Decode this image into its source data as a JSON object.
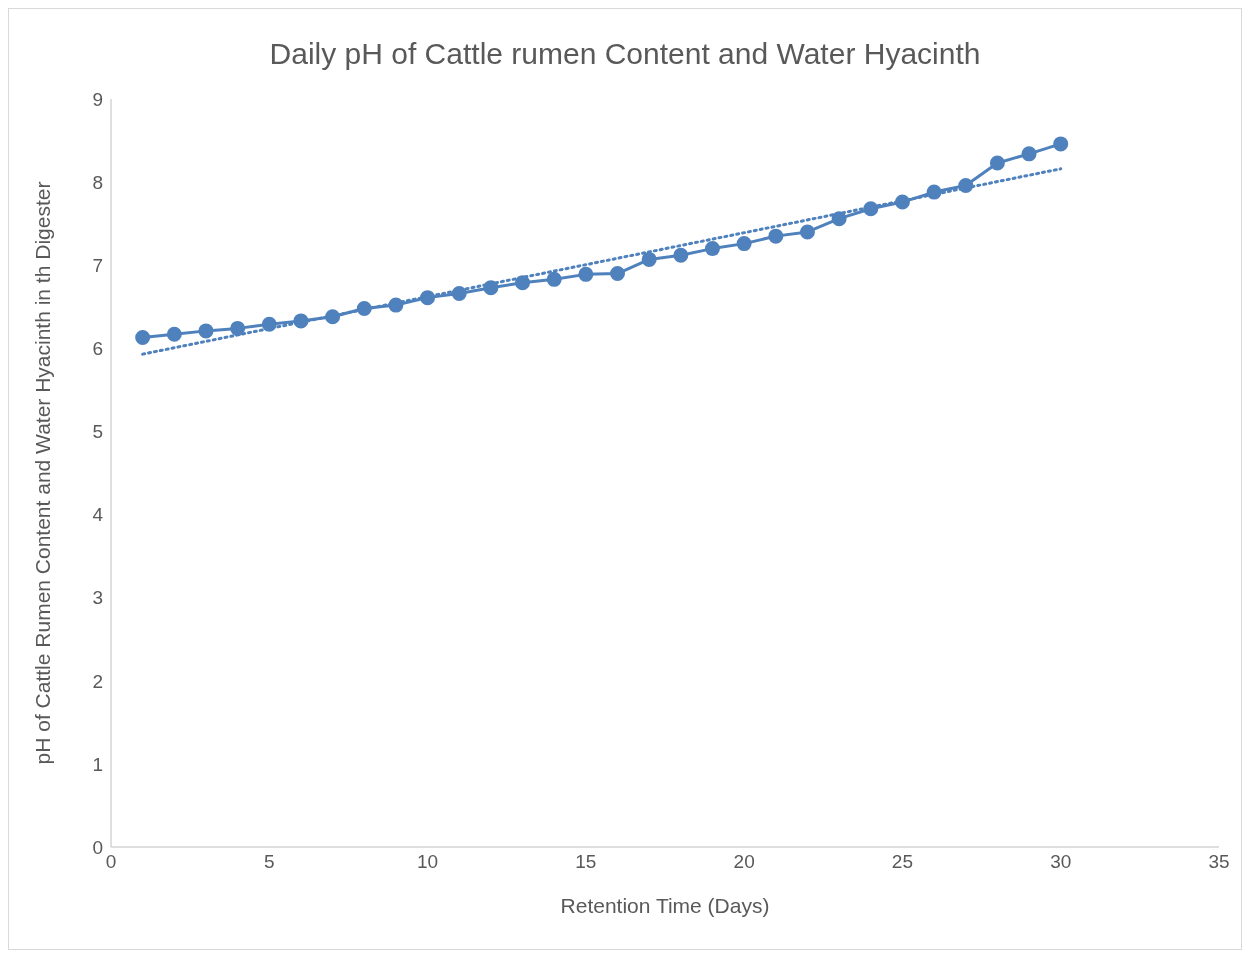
{
  "chart_data": {
    "type": "line",
    "title": "Daily pH of Cattle rumen Content and Water Hyacinth",
    "xlabel": "Retention Time (Days)",
    "ylabel": "pH of Cattle Rumen Content and Water Hyacinth in th Digester",
    "x": [
      1,
      2,
      3,
      4,
      5,
      6,
      7,
      8,
      9,
      10,
      11,
      12,
      13,
      14,
      15,
      16,
      17,
      18,
      19,
      20,
      21,
      22,
      23,
      24,
      25,
      26,
      27,
      28,
      29,
      30
    ],
    "series": [
      {
        "color": "#4f81bd",
        "marker": "circle",
        "line_style": "solid",
        "values": [
          6.13,
          6.17,
          6.21,
          6.24,
          6.29,
          6.33,
          6.38,
          6.48,
          6.52,
          6.61,
          6.66,
          6.73,
          6.79,
          6.83,
          6.89,
          6.9,
          7.07,
          7.12,
          7.2,
          7.26,
          7.35,
          7.4,
          7.56,
          7.68,
          7.76,
          7.88,
          7.96,
          8.23,
          8.34,
          8.46
        ]
      },
      {
        "type": "line",
        "color": "#4f81bd",
        "marker": "none",
        "line_style": "dotted",
        "x": [
          1,
          30
        ],
        "values": [
          5.93,
          8.16
        ]
      }
    ],
    "xlim": [
      0,
      35
    ],
    "xticks": [
      0,
      5,
      10,
      15,
      20,
      25,
      30,
      35
    ],
    "ylim": [
      0,
      9
    ],
    "yticks": [
      0,
      1,
      2,
      3,
      4,
      5,
      6,
      7,
      8,
      9
    ],
    "grid": false
  }
}
